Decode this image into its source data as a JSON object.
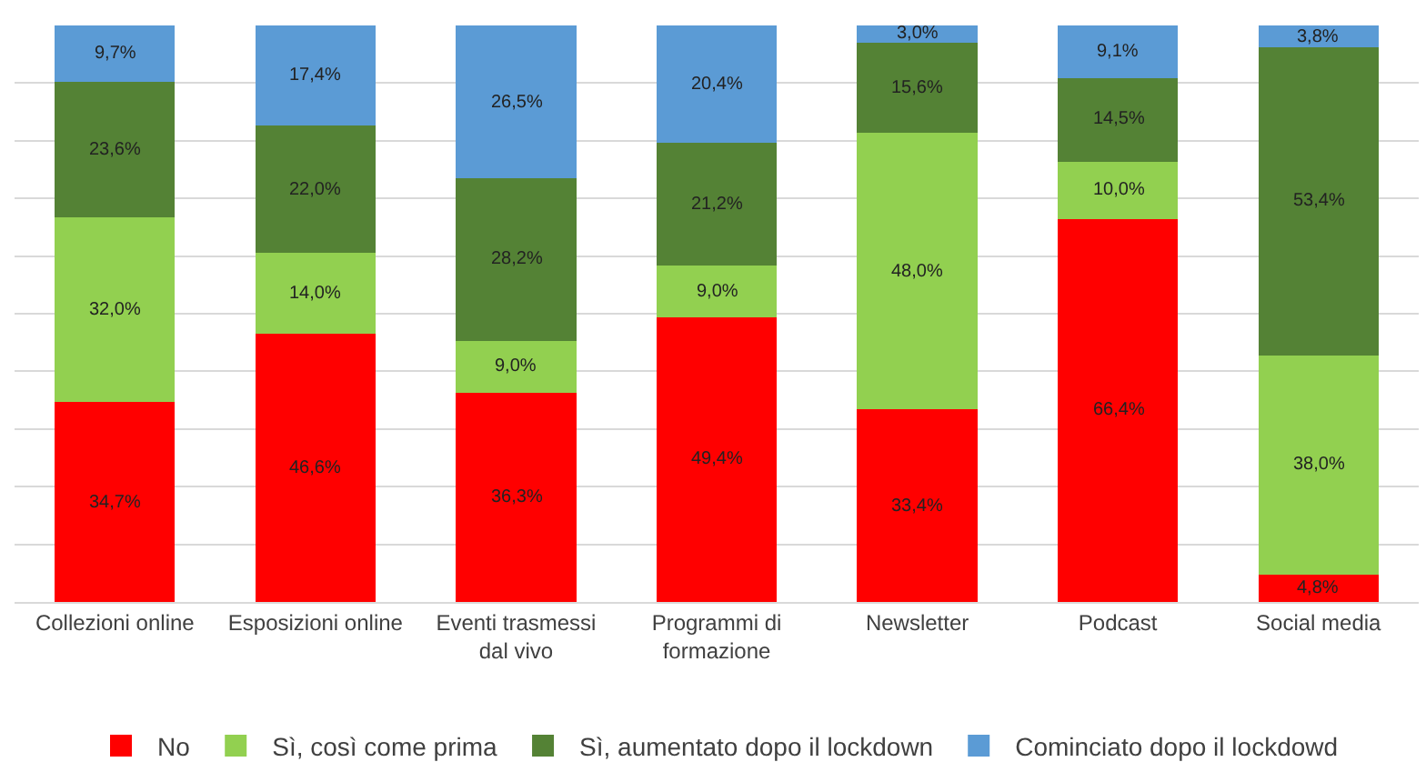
{
  "chart_data": {
    "type": "bar",
    "stacked": true,
    "categories": [
      "Collezioni online",
      "Esposizioni online",
      "Eventi trasmessi dal vivo",
      "Programmi di formazione",
      "Newsletter",
      "Podcast",
      "Social media"
    ],
    "series": [
      {
        "name": "No",
        "color": "#ff0000",
        "values": [
          34.7,
          46.6,
          36.3,
          49.4,
          33.4,
          66.4,
          4.8
        ],
        "value_labels": [
          "34,7%",
          "46,6%",
          "36,3%",
          "49,4%",
          "33,4%",
          "66,4%",
          "4,8%"
        ]
      },
      {
        "name": "Sì, così come prima",
        "color": "#92d050",
        "values": [
          32.0,
          14.0,
          9.0,
          9.0,
          48.0,
          10.0,
          38.0
        ],
        "value_labels": [
          "32,0%",
          "14,0%",
          "9,0%",
          "9,0%",
          "48,0%",
          "10,0%",
          "38,0%"
        ]
      },
      {
        "name": "Sì, aumentato dopo il lockdown",
        "color": "#548235",
        "values": [
          23.6,
          22.0,
          28.2,
          21.2,
          15.6,
          14.5,
          53.4
        ],
        "value_labels": [
          "23,6%",
          "22,0%",
          "28,2%",
          "21,2%",
          "15,6%",
          "14,5%",
          "53,4%"
        ]
      },
      {
        "name": "Cominciato dopo il lockdowd",
        "color": "#5b9bd5",
        "values": [
          9.7,
          17.4,
          26.5,
          20.4,
          3.0,
          9.1,
          3.8
        ],
        "value_labels": [
          "9,7%",
          "17,4%",
          "26,5%",
          "20,4%",
          "3,0%",
          "9,1%",
          "3,8%"
        ]
      }
    ],
    "ylim": [
      0,
      100
    ],
    "yticks": [
      {
        "value": 0,
        "label": null
      },
      {
        "value": 10,
        "label": null
      },
      {
        "value": 20,
        "label": null
      },
      {
        "value": 30,
        "label": null
      },
      {
        "value": 40,
        "label": null
      },
      {
        "value": 50,
        "label": null
      },
      {
        "value": 60,
        "label": null
      },
      {
        "value": 70,
        "label": null
      },
      {
        "value": 80,
        "label": null
      },
      {
        "value": 90,
        "label": null
      }
    ],
    "grid": "y",
    "tick_labels": "x",
    "legend": "bottom"
  }
}
